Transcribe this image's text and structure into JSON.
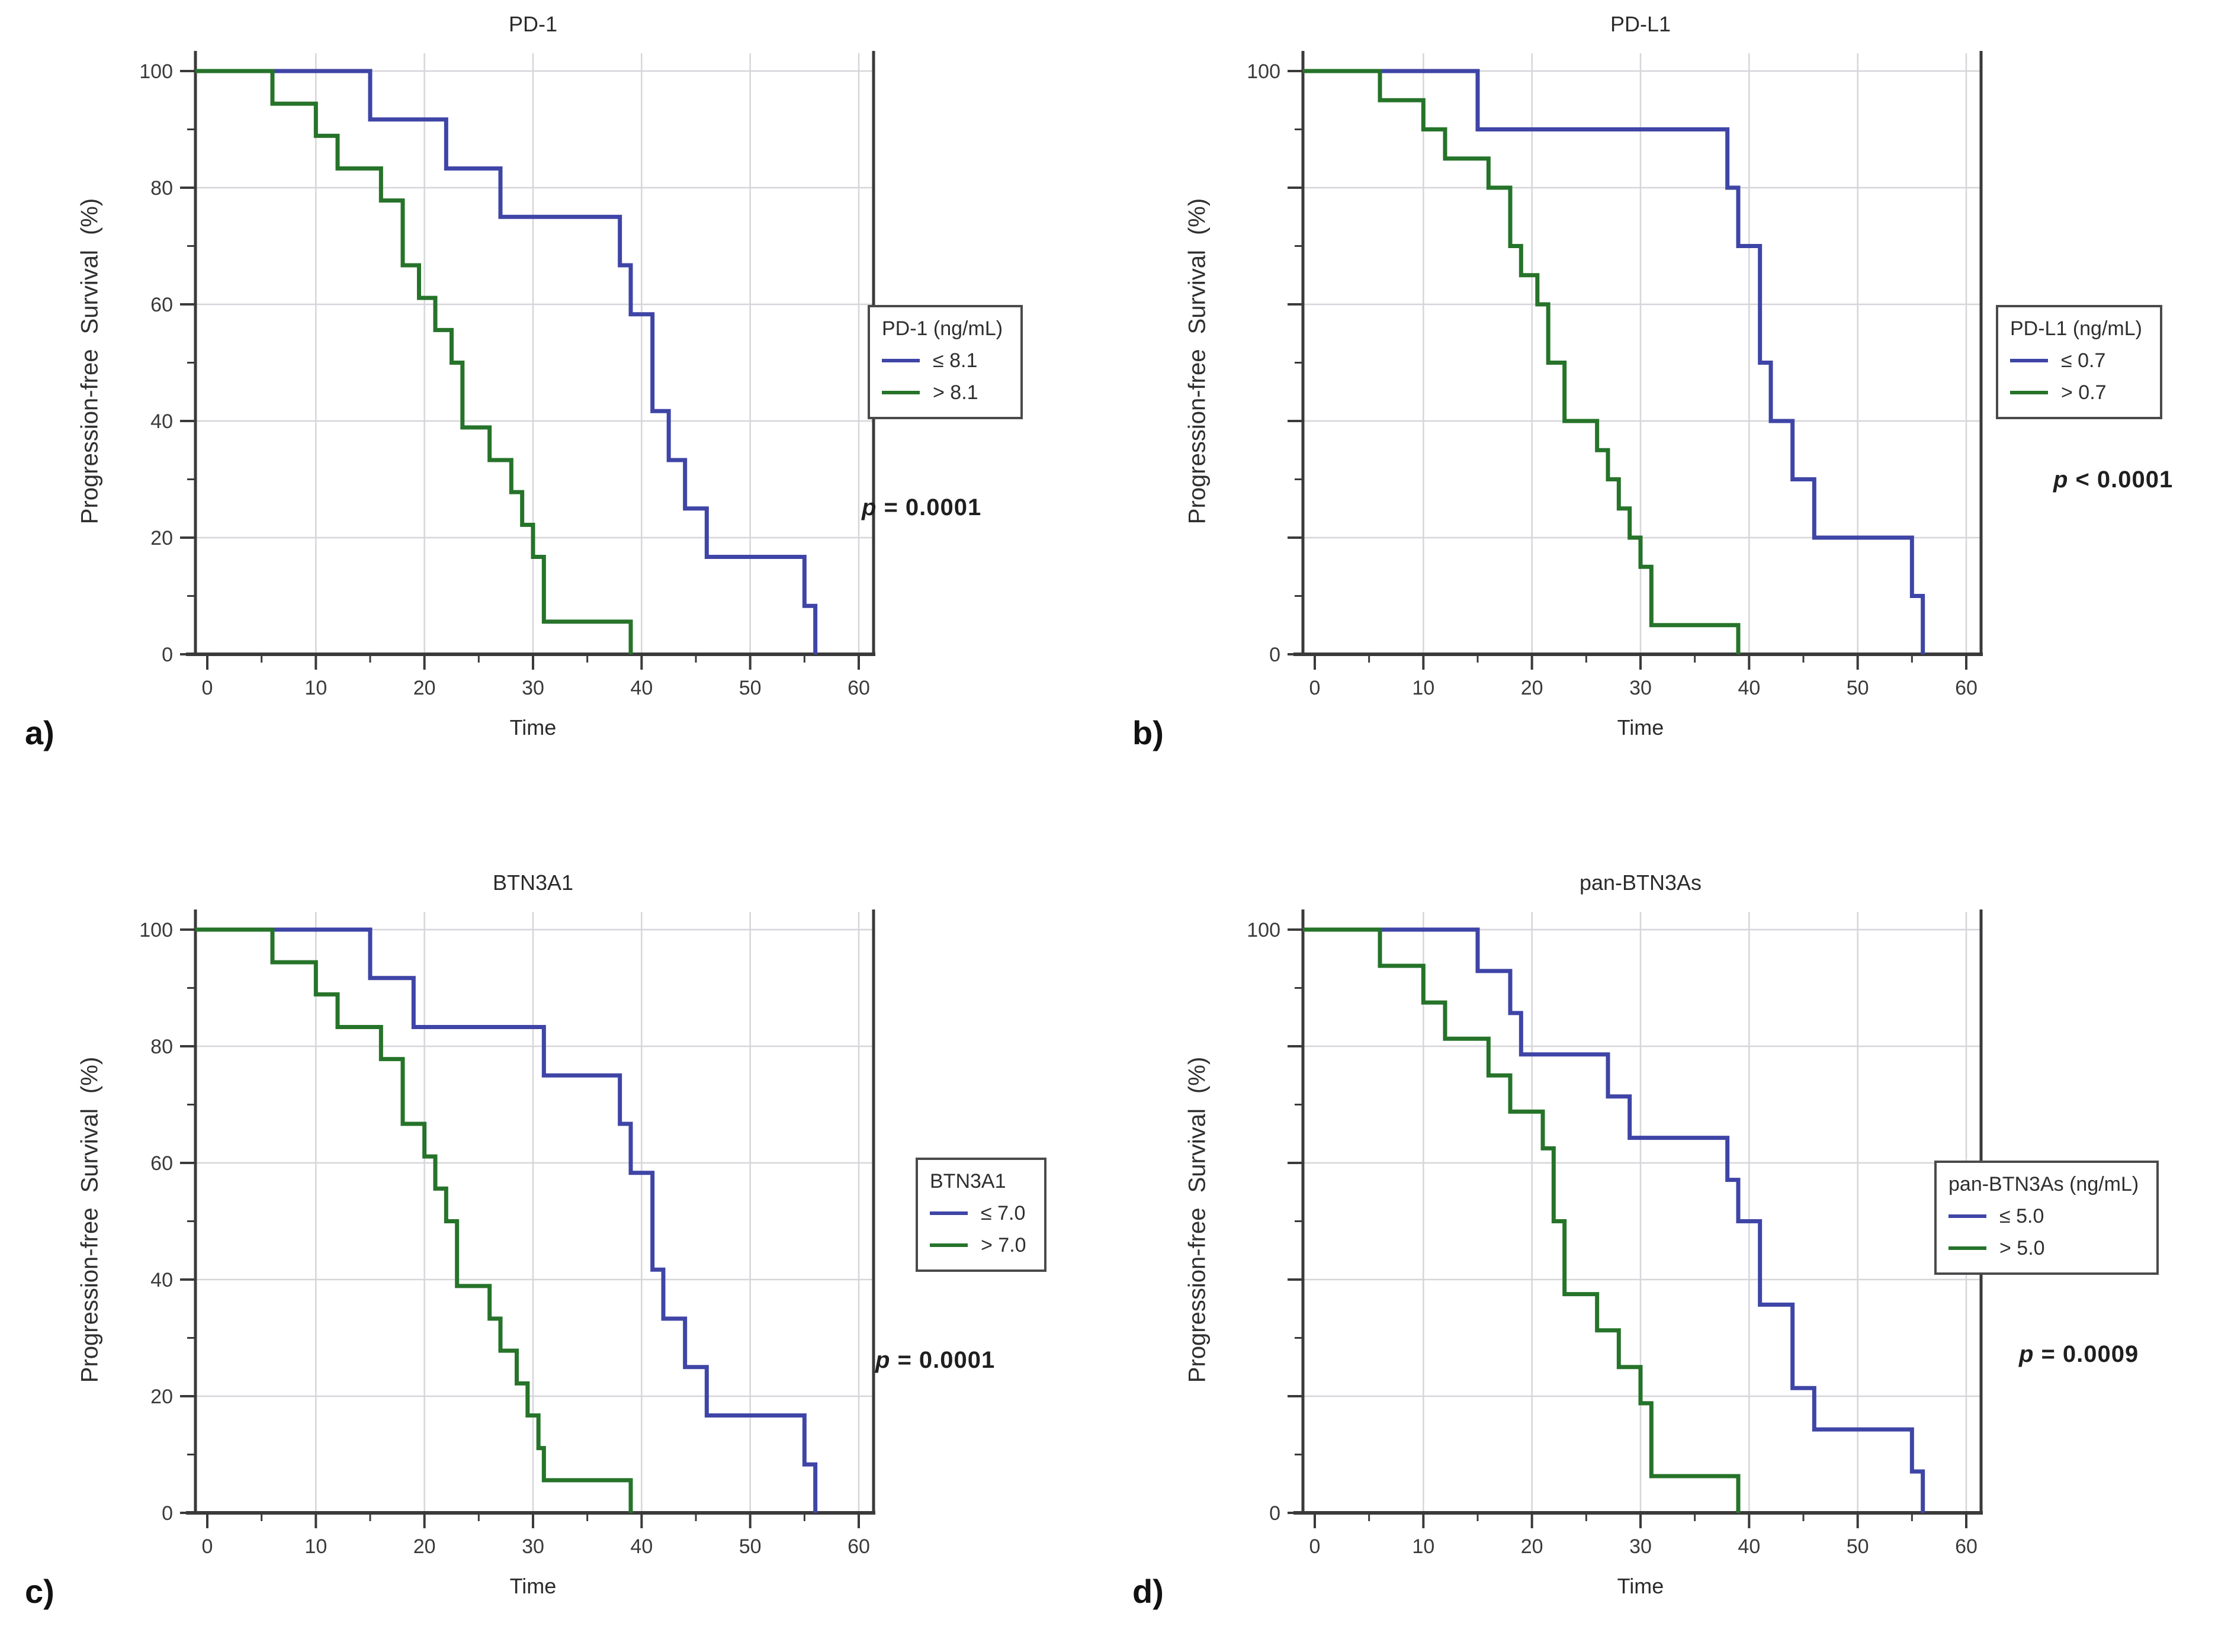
{
  "figure": {
    "background": "#ffffff"
  },
  "colors": {
    "blue": "#3f45a6",
    "green": "#26732a",
    "axis": "#3a3a3a",
    "grid": "#d6d6da",
    "text": "#2f2f2f",
    "legend_border": "#4a4a4a"
  },
  "chart_data": [
    {
      "id": "a",
      "panel_label": "a)",
      "type": "line",
      "subtype": "kaplan_meier_step",
      "title": "PD-1",
      "xlabel": "Time",
      "ylabel": "Progression-free Survival (%)",
      "xlim": [
        0,
        60
      ],
      "ylim": [
        0,
        100
      ],
      "grid": true,
      "x_ticks": [
        0,
        10,
        20,
        30,
        40,
        50,
        60
      ],
      "x_minor_ticks": [
        5,
        15,
        25,
        35,
        45,
        55
      ],
      "y_major_ticks": [
        0,
        20,
        40,
        60,
        80,
        100
      ],
      "y_minor_ticks": [
        10,
        30,
        50,
        70,
        90
      ],
      "y_grid": [
        20,
        40,
        60,
        80,
        100
      ],
      "y_tick_labels": [
        [
          100,
          "100"
        ],
        [
          80,
          "80"
        ],
        [
          60,
          "60"
        ],
        [
          40,
          "40"
        ],
        [
          20,
          "20"
        ],
        [
          0,
          "0"
        ]
      ],
      "legend": {
        "position": "right",
        "title": "PD-1 (ng/mL)",
        "items": [
          {
            "label": "≤ 8.1",
            "color": "blue"
          },
          {
            "label": "> 8.1",
            "color": "green"
          }
        ]
      },
      "p_symbol": "p",
      "p_text": "= 0.0001",
      "series": [
        {
          "name": "≤ 8.1",
          "color": "blue",
          "points": [
            [
              0,
              100
            ],
            [
              15,
              91.7
            ],
            [
              22,
              83.3
            ],
            [
              27,
              75
            ],
            [
              38,
              66.7
            ],
            [
              39,
              58.3
            ],
            [
              41,
              41.7
            ],
            [
              42.5,
              33.3
            ],
            [
              44,
              25
            ],
            [
              46,
              16.7
            ],
            [
              55,
              8.3
            ],
            [
              56,
              0
            ]
          ]
        },
        {
          "name": "> 8.1",
          "color": "green",
          "points": [
            [
              0,
              100
            ],
            [
              6,
              94.4
            ],
            [
              10,
              88.9
            ],
            [
              12,
              83.3
            ],
            [
              16,
              77.8
            ],
            [
              18,
              66.7
            ],
            [
              19.5,
              61.1
            ],
            [
              21,
              55.6
            ],
            [
              22.5,
              50
            ],
            [
              23.5,
              38.9
            ],
            [
              26,
              33.3
            ],
            [
              28,
              27.8
            ],
            [
              29,
              22.2
            ],
            [
              30,
              16.7
            ],
            [
              31,
              5.6
            ],
            [
              39,
              0
            ]
          ]
        }
      ]
    },
    {
      "id": "b",
      "panel_label": "b)",
      "type": "line",
      "subtype": "kaplan_meier_step",
      "title": "PD-L1",
      "xlabel": "Time",
      "ylabel": "Progression-free Survival (%)",
      "xlim": [
        0,
        60
      ],
      "ylim": [
        0,
        100
      ],
      "grid": true,
      "x_ticks": [
        0,
        10,
        20,
        30,
        40,
        50,
        60
      ],
      "x_minor_ticks": [
        5,
        15,
        25,
        35,
        45,
        55
      ],
      "y_major_ticks": [
        0,
        20,
        40,
        60,
        80,
        100
      ],
      "y_minor_ticks": [
        10,
        30,
        50,
        70,
        90
      ],
      "y_grid": [
        20,
        40,
        60,
        80,
        100
      ],
      "y_tick_labels": [
        [
          100,
          "100"
        ],
        [
          0,
          "0"
        ]
      ],
      "legend": {
        "position": "right",
        "title": "PD-L1 (ng/mL)",
        "items": [
          {
            "label": "≤ 0.7",
            "color": "blue"
          },
          {
            "label": "> 0.7",
            "color": "green"
          }
        ]
      },
      "p_symbol": "p",
      "p_text": "< 0.0001",
      "series": [
        {
          "name": "≤ 0.7",
          "color": "blue",
          "points": [
            [
              0,
              100
            ],
            [
              15,
              90
            ],
            [
              38,
              80
            ],
            [
              39,
              70
            ],
            [
              41,
              50
            ],
            [
              42,
              40
            ],
            [
              44,
              30
            ],
            [
              46,
              20
            ],
            [
              55,
              10
            ],
            [
              56,
              0
            ]
          ]
        },
        {
          "name": "> 0.7",
          "color": "green",
          "points": [
            [
              0,
              100
            ],
            [
              6,
              95
            ],
            [
              10,
              90
            ],
            [
              12,
              85
            ],
            [
              16,
              80
            ],
            [
              18,
              70
            ],
            [
              19,
              65
            ],
            [
              20.5,
              60
            ],
            [
              21.5,
              50
            ],
            [
              23,
              40
            ],
            [
              26,
              35
            ],
            [
              27,
              30
            ],
            [
              28,
              25
            ],
            [
              29,
              20
            ],
            [
              30,
              15
            ],
            [
              31,
              5
            ],
            [
              39,
              0
            ]
          ]
        }
      ]
    },
    {
      "id": "c",
      "panel_label": "c)",
      "type": "line",
      "subtype": "kaplan_meier_step",
      "title": "BTN3A1",
      "xlabel": "Time",
      "ylabel": "Progression-free Survival (%)",
      "xlim": [
        0,
        60
      ],
      "ylim": [
        0,
        100
      ],
      "grid": true,
      "x_ticks": [
        0,
        10,
        20,
        30,
        40,
        50,
        60
      ],
      "x_minor_ticks": [
        5,
        15,
        25,
        35,
        45,
        55
      ],
      "y_major_ticks": [
        0,
        20,
        40,
        60,
        80,
        100
      ],
      "y_minor_ticks": [
        10,
        30,
        50,
        70,
        90
      ],
      "y_grid": [
        20,
        40,
        60,
        80,
        100
      ],
      "y_tick_labels": [
        [
          100,
          "100"
        ],
        [
          80,
          "80"
        ],
        [
          60,
          "60"
        ],
        [
          40,
          "40"
        ],
        [
          20,
          "20"
        ],
        [
          0,
          "0"
        ]
      ],
      "legend": {
        "position": "right",
        "title": "BTN3A1",
        "items": [
          {
            "label": "≤ 7.0",
            "color": "blue"
          },
          {
            "label": "> 7.0",
            "color": "green"
          }
        ]
      },
      "p_symbol": "p",
      "p_text": "= 0.0001",
      "series": [
        {
          "name": "≤ 7.0",
          "color": "blue",
          "points": [
            [
              0,
              100
            ],
            [
              15,
              91.7
            ],
            [
              19,
              83.3
            ],
            [
              31,
              75
            ],
            [
              38,
              66.7
            ],
            [
              39,
              58.3
            ],
            [
              41,
              41.7
            ],
            [
              42,
              33.3
            ],
            [
              44,
              25
            ],
            [
              46,
              16.7
            ],
            [
              55,
              8.3
            ],
            [
              56,
              0
            ]
          ]
        },
        {
          "name": "> 7.0",
          "color": "green",
          "points": [
            [
              0,
              100
            ],
            [
              6,
              94.4
            ],
            [
              10,
              88.9
            ],
            [
              12,
              83.3
            ],
            [
              16,
              77.8
            ],
            [
              18,
              66.7
            ],
            [
              20,
              61.1
            ],
            [
              21,
              55.6
            ],
            [
              22,
              50
            ],
            [
              23,
              38.9
            ],
            [
              26,
              33.3
            ],
            [
              27,
              27.8
            ],
            [
              28.5,
              22.2
            ],
            [
              29.5,
              16.7
            ],
            [
              30.5,
              11.1
            ],
            [
              31,
              5.6
            ],
            [
              39,
              0
            ]
          ]
        }
      ]
    },
    {
      "id": "d",
      "panel_label": "d)",
      "type": "line",
      "subtype": "kaplan_meier_step",
      "title": "pan-BTN3As",
      "xlabel": "Time",
      "ylabel": "Progression-free Survival (%)",
      "xlim": [
        0,
        60
      ],
      "ylim": [
        0,
        100
      ],
      "grid": true,
      "x_ticks": [
        0,
        10,
        20,
        30,
        40,
        50,
        60
      ],
      "x_minor_ticks": [
        5,
        15,
        25,
        35,
        45,
        55
      ],
      "y_major_ticks": [
        0,
        20,
        40,
        60,
        80,
        100
      ],
      "y_minor_ticks": [
        10,
        30,
        50,
        70,
        90
      ],
      "y_grid": [
        20,
        40,
        60,
        80,
        100
      ],
      "y_tick_labels": [
        [
          100,
          "100"
        ],
        [
          0,
          "0"
        ]
      ],
      "legend": {
        "position": "right",
        "title": "pan-BTN3As (ng/mL)",
        "items": [
          {
            "label": "≤ 5.0",
            "color": "blue"
          },
          {
            "label": "> 5.0",
            "color": "green"
          }
        ]
      },
      "p_symbol": "p",
      "p_text": "= 0.0009",
      "series": [
        {
          "name": "≤ 5.0",
          "color": "blue",
          "points": [
            [
              0,
              100
            ],
            [
              15,
              92.9
            ],
            [
              18,
              85.7
            ],
            [
              19,
              78.6
            ],
            [
              27,
              71.4
            ],
            [
              29,
              64.3
            ],
            [
              38,
              57.1
            ],
            [
              39,
              50
            ],
            [
              41,
              35.7
            ],
            [
              44,
              21.4
            ],
            [
              46,
              14.3
            ],
            [
              55,
              7.1
            ],
            [
              56,
              0
            ]
          ]
        },
        {
          "name": "> 5.0",
          "color": "green",
          "points": [
            [
              0,
              100
            ],
            [
              6,
              93.8
            ],
            [
              10,
              87.5
            ],
            [
              12,
              81.3
            ],
            [
              16,
              75
            ],
            [
              18,
              68.8
            ],
            [
              21,
              62.5
            ],
            [
              22,
              50
            ],
            [
              23,
              37.5
            ],
            [
              26,
              31.3
            ],
            [
              28,
              25
            ],
            [
              30,
              18.8
            ],
            [
              31,
              6.3
            ],
            [
              39,
              0
            ]
          ]
        }
      ]
    }
  ]
}
